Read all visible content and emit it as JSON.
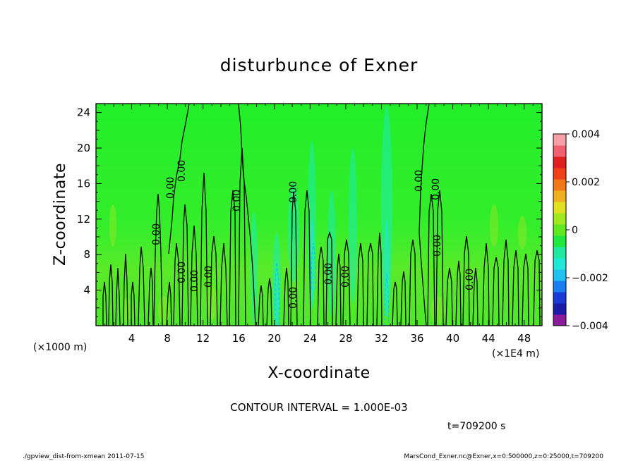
{
  "chart_data": {
    "type": "heatmap",
    "title": "disturbunce of Exner",
    "xlabel": "X-coordinate",
    "ylabel": "Z-coordinate",
    "x_unit_label": "(×1000 m)",
    "x_scale_label": "(×1E4 m)",
    "xlim": [
      0,
      50
    ],
    "ylim": [
      0,
      25
    ],
    "x_ticks": [
      4,
      8,
      12,
      16,
      20,
      24,
      28,
      32,
      36,
      40,
      44,
      48
    ],
    "y_ticks": [
      4,
      8,
      12,
      16,
      20,
      24
    ],
    "background_value": 0,
    "contour_interval_text": "CONTOUR INTERVAL = 1.000E-03",
    "contour_labels": [
      "0.00",
      "0.00",
      "0.00",
      "0.00",
      "0.00",
      "0.00",
      "0.00",
      "0.00",
      "0.00",
      "0.00",
      "0.00",
      "0.00",
      "0.00",
      "0.00",
      "0.00"
    ],
    "time_text": "t=709200 s",
    "colorbar": {
      "range": [
        -0.004,
        0.004
      ],
      "tick_labels": [
        "0.004",
        "0.002",
        "0",
        "−0.002",
        "−0.004"
      ],
      "tick_values": [
        0.004,
        0.002,
        0,
        -0.002,
        -0.004
      ],
      "colors": [
        "#8b1a9c",
        "#1a1aa8",
        "#1a3ad8",
        "#1a7ef0",
        "#20c0f0",
        "#20e8d8",
        "#20e8a0",
        "#20e840",
        "#60e820",
        "#a0e820",
        "#e0e020",
        "#f0b020",
        "#f07818",
        "#f04018",
        "#e02020",
        "#f06070",
        "#f8a0a8"
      ]
    }
  },
  "footer": {
    "left": "./gpview_dist-from-xmean  2011-07-15",
    "right": "MarsCond_Exner.nc@Exner,x=0:500000,z=0:25000,t=709200"
  }
}
